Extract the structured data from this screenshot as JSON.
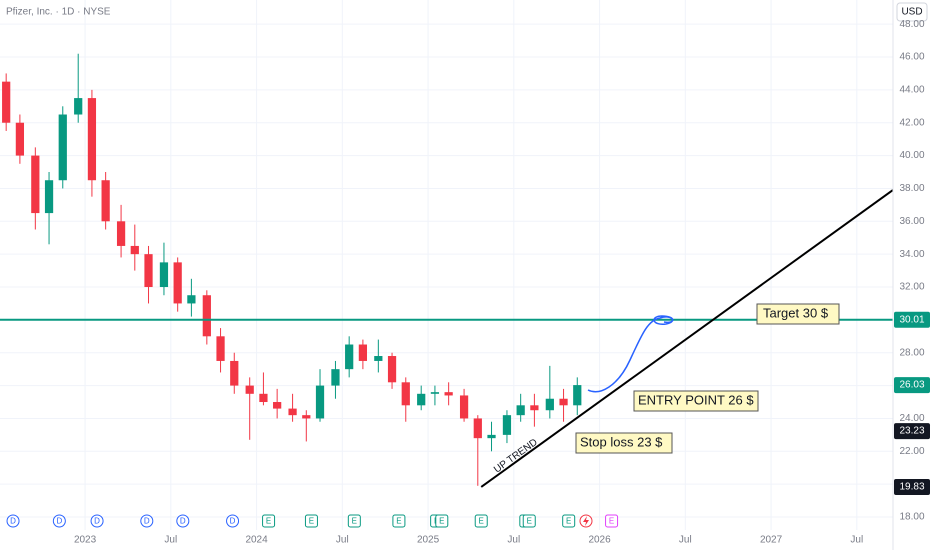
{
  "chart_data": {
    "type": "candlestick",
    "title": "Pfizer, Inc. · 1D · NYSE",
    "currency": "USD",
    "x": [
      2022.54,
      2022.62,
      2022.71,
      2022.79,
      2022.87,
      2022.96,
      2023.04,
      2023.12,
      2023.21,
      2023.29,
      2023.37,
      2023.46,
      2023.54,
      2023.62,
      2023.71,
      2023.79,
      2023.87,
      2023.96,
      2024.04,
      2024.12,
      2024.21,
      2024.29,
      2024.37,
      2024.46,
      2024.54,
      2024.62,
      2024.71,
      2024.79,
      2024.87,
      2024.96,
      2025.04,
      2025.12,
      2025.21,
      2025.29,
      2025.37,
      2025.46,
      2025.54,
      2025.62,
      2025.71,
      2025.79,
      2025.87
    ],
    "open": [
      44.5,
      42,
      40,
      36.5,
      38.5,
      42.5,
      43.5,
      38.5,
      36,
      34.5,
      34,
      32,
      33.5,
      31,
      31.5,
      29,
      27.5,
      26,
      25.5,
      25,
      24.6,
      24.2,
      24,
      26,
      27,
      28.5,
      27.5,
      27.8,
      26.2,
      24.8,
      25.5,
      25.6,
      25.4,
      24,
      22.8,
      23,
      24.2,
      24.8,
      24.5,
      25.2,
      24.8
    ],
    "high": [
      45,
      42.5,
      40.5,
      39,
      43,
      46.2,
      44,
      39,
      37,
      35.8,
      34.5,
      34.7,
      33.8,
      32.5,
      31.8,
      29.5,
      28,
      26.5,
      26.8,
      25.8,
      25.5,
      24.5,
      27,
      27.5,
      29,
      28.8,
      28.8,
      28,
      26.5,
      26,
      26,
      26.2,
      25.8,
      24.2,
      23.8,
      24.5,
      25.5,
      25.5,
      27.2,
      25.8,
      26.5
    ],
    "low": [
      41.5,
      39.5,
      35.5,
      34.6,
      38,
      42,
      37.5,
      35.5,
      33.8,
      33,
      31,
      31.5,
      30.5,
      30.2,
      28.5,
      26.8,
      25.5,
      22.7,
      24.8,
      24,
      23.8,
      22.6,
      23.8,
      25.2,
      26.5,
      27,
      26.8,
      25.8,
      23.8,
      24.5,
      24.8,
      24.8,
      23.8,
      19.9,
      22,
      22.5,
      23.8,
      23.5,
      24,
      23.8,
      24.2
    ],
    "close": [
      42,
      40,
      36.5,
      38.5,
      42.5,
      43.5,
      38.5,
      36,
      34.5,
      34,
      32,
      33.5,
      31,
      31.5,
      29,
      27.5,
      26,
      25.5,
      25,
      24.6,
      24.2,
      24,
      26,
      27,
      28.5,
      27.5,
      27.8,
      26.2,
      24.8,
      25.5,
      25.6,
      25.4,
      24,
      22.8,
      23,
      24.2,
      24.8,
      24.5,
      25.2,
      24.8,
      26.03
    ],
    "up_color": "#089981",
    "down_color": "#f23645",
    "xlim": [
      2022.504,
      2027.711
    ],
    "ylim": [
      17.21,
      49.47
    ],
    "xticks": [
      {
        "value": 2023,
        "label": "2023"
      },
      {
        "value": 2023.5,
        "label": "Jul"
      },
      {
        "value": 2024,
        "label": "2024"
      },
      {
        "value": 2024.5,
        "label": "Jul"
      },
      {
        "value": 2025,
        "label": "2025"
      },
      {
        "value": 2025.5,
        "label": "Jul"
      },
      {
        "value": 2026,
        "label": "2026"
      },
      {
        "value": 2026.5,
        "label": "Jul"
      },
      {
        "value": 2027,
        "label": "2027"
      },
      {
        "value": 2027.5,
        "label": "Jul"
      }
    ],
    "yticks": [
      {
        "value": 18,
        "label": "18.00"
      },
      {
        "value": 20,
        "label": "20.00"
      },
      {
        "value": 22,
        "label": "22.00"
      },
      {
        "value": 24,
        "label": "24.00"
      },
      {
        "value": 26,
        "label": "26.00"
      },
      {
        "value": 28,
        "label": "28.00"
      },
      {
        "value": 30,
        "label": "30.00"
      },
      {
        "value": 32,
        "label": "32.00"
      },
      {
        "value": 34,
        "label": "34.00"
      },
      {
        "value": 36,
        "label": "36.00"
      },
      {
        "value": 38,
        "label": "38.00"
      },
      {
        "value": 40,
        "label": "40.00"
      },
      {
        "value": 42,
        "label": "42.00"
      },
      {
        "value": 44,
        "label": "44.00"
      },
      {
        "value": 46,
        "label": "46.00"
      },
      {
        "value": 48,
        "label": "48.00"
      }
    ],
    "grid": true,
    "price_labels": [
      {
        "value": 30.01,
        "color": "#089981"
      },
      {
        "value": 26.03,
        "color": "#089981"
      },
      {
        "value": 23.23,
        "color": "#131722"
      },
      {
        "value": 19.83,
        "color": "#131722"
      }
    ],
    "horizontal_line_color": "#089981",
    "trend_line": {
      "label": "UP TREND",
      "x": [
        2025.31,
        2027.71
      ],
      "y": [
        19.83,
        37.9
      ]
    },
    "notes": [
      "Target 30 $",
      "ENTRY POINT 26 $",
      "Stop loss 23 $"
    ],
    "events": [
      {
        "label": "D",
        "x": 2022.58,
        "color": "#2962ff"
      },
      {
        "label": "D",
        "x": 2022.85,
        "color": "#2962ff"
      },
      {
        "label": "D",
        "x": 2023.07,
        "color": "#2962ff"
      },
      {
        "label": "D",
        "x": 2023.36,
        "color": "#2962ff"
      },
      {
        "label": "D",
        "x": 2023.57,
        "color": "#2962ff"
      },
      {
        "label": "D",
        "x": 2023.86,
        "color": "#2962ff"
      },
      {
        "label": "E",
        "x": 2024.07,
        "color": "#089981"
      },
      {
        "label": "E",
        "x": 2024.32,
        "color": "#089981"
      },
      {
        "label": "E",
        "x": 2024.57,
        "color": "#089981"
      },
      {
        "label": "E",
        "x": 2024.83,
        "color": "#089981"
      },
      {
        "label": "E",
        "x": 2025.05,
        "color": "#089981"
      },
      {
        "label": "E",
        "x": 2025.08,
        "color": "#089981"
      },
      {
        "label": "E",
        "x": 2025.31,
        "color": "#089981"
      },
      {
        "label": "E",
        "x": 2025.57,
        "color": "#089981"
      },
      {
        "label": "E",
        "x": 2025.59,
        "color": "#089981"
      },
      {
        "label": "E",
        "x": 2025.82,
        "color": "#089981"
      },
      {
        "label": "E",
        "x": 2026.07,
        "color": "#e040fb"
      }
    ]
  }
}
